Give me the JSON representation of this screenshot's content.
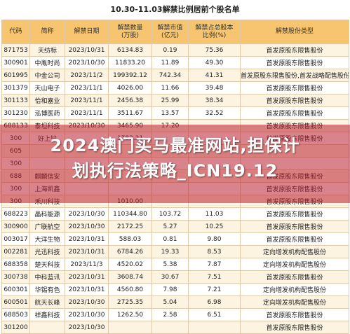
{
  "title": "10.30-11.03解禁比例居前个股名单",
  "headers": [
    "代码",
    "简称",
    "解禁日期",
    "解禁数量\n(万股)",
    "解禁市值\n(亿元)",
    "解禁占总股本\n比例(%)",
    "解禁股份类型"
  ],
  "rows": [
    [
      "871753",
      "天纺标",
      "2023/10/31",
      "6134.83",
      "0.19",
      "75.36",
      "首发原股东限售股份"
    ],
    [
      "300901",
      "中胤时尚",
      "2023/10/30",
      "11833.20",
      "11.89",
      "49.30",
      "首发原股东限售股份"
    ],
    [
      "601995",
      "中金公司",
      "2023/11/2",
      "199392.12",
      "742.34",
      "41.31",
      "首发原股东限售股份,首发战略配售股份"
    ],
    [
      "301379",
      "天山电子",
      "2023/11/1",
      "4026.00",
      "11.66",
      "39.48",
      "首发原股东限售股份"
    ],
    [
      "301133",
      "怡和嘉业",
      "2023/11/1",
      "2456.38",
      "25.99",
      "38.34",
      "首发原股东限售股份"
    ],
    [
      "301230",
      "泓博医药",
      "2023/11/1",
      "3511.67",
      "13.57",
      "32.52",
      "首发原股东限售股份"
    ],
    [
      "688133",
      "泰坦科技",
      "2023/10/30",
      "3465.90",
      "17.20",
      "",
      "首发原股东限售股份"
    ],
    [
      "300",
      "好上好",
      "",
      "3782.21",
      "",
      "",
      "首发原股东限售股份"
    ],
    [
      "605",
      "",
      "",
      "",
      "",
      "",
      ""
    ],
    [
      "300",
      "",
      "",
      "",
      "",
      "",
      ""
    ],
    [
      "688",
      "麒麟信安",
      "",
      "",
      "",
      "",
      "首发原股东限售股份"
    ],
    [
      "300",
      "上海凯鑫",
      "",
      "",
      "",
      "",
      "首发原股东限售股份"
    ],
    [
      "300",
      "禾川科技",
      "",
      "1010.00",
      "",
      "",
      "首发原股东限售股份"
    ],
    [
      "688223",
      "晶科能源",
      "2023/10/30",
      "110344.80",
      "103.72",
      "11.03",
      "首发原股东限售股份"
    ],
    [
      "300900",
      "广联航空",
      "2023/10/30",
      "2172.25",
      "5.27",
      "10.25",
      "首发原股东限售股份"
    ],
    [
      "003017",
      "大洋生物",
      "2023/10/31",
      "588.03",
      "0.81",
      "9.80",
      "首发原股东限售股份"
    ],
    [
      "002281",
      "光迅科技",
      "2023/10/31",
      "6784.26",
      "19.33",
      "8.53",
      "定向增发机构配售股份"
    ],
    [
      "688358",
      "楚天科技",
      "2023/11/3",
      "4520.02",
      "5.38",
      "7.87",
      "定向增发机构配售股份"
    ],
    [
      "300738",
      "中科蓝讯",
      "2023/10/31",
      "3608.74",
      "30.67",
      "7.51",
      "首发原股东限售股份"
    ],
    [
      "600301",
      "华锡有色",
      "2023/10/31",
      "4560.80",
      "7.98",
      "7.21",
      "定向增发机构配售股份"
    ],
    [
      "600501",
      "航天长峰",
      "2023/10/30",
      "2725.35",
      "5.04",
      "6.98",
      "定向增发机构配售股份"
    ],
    [
      "688503",
      "祥鑫科技",
      "2023/10/30",
      "1262.50",
      "2.58",
      "6.51",
      "首发原股东限售股份"
    ],
    [
      "301200",
      "",
      "2023/10/30",
      "",
      "",
      "",
      "首发原股东限售股份"
    ]
  ],
  "headline_line1": "2024澳门买马最准网站,担保计",
  "headline_line2": "划执行法策略_ICN19.12"
}
